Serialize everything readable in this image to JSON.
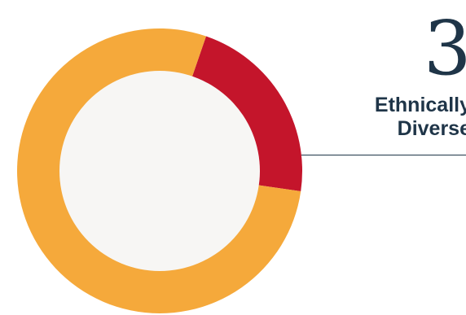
{
  "chart_data": {
    "type": "pie",
    "title": "",
    "slices": [
      {
        "value": 22,
        "color": "#c4152b"
      },
      {
        "value": 78,
        "color": "#f5a93b"
      }
    ],
    "center_color": "#f7f6f4",
    "callout": {
      "number": "3",
      "label_line1": "Ethnically",
      "label_line2": "Diverse"
    }
  }
}
